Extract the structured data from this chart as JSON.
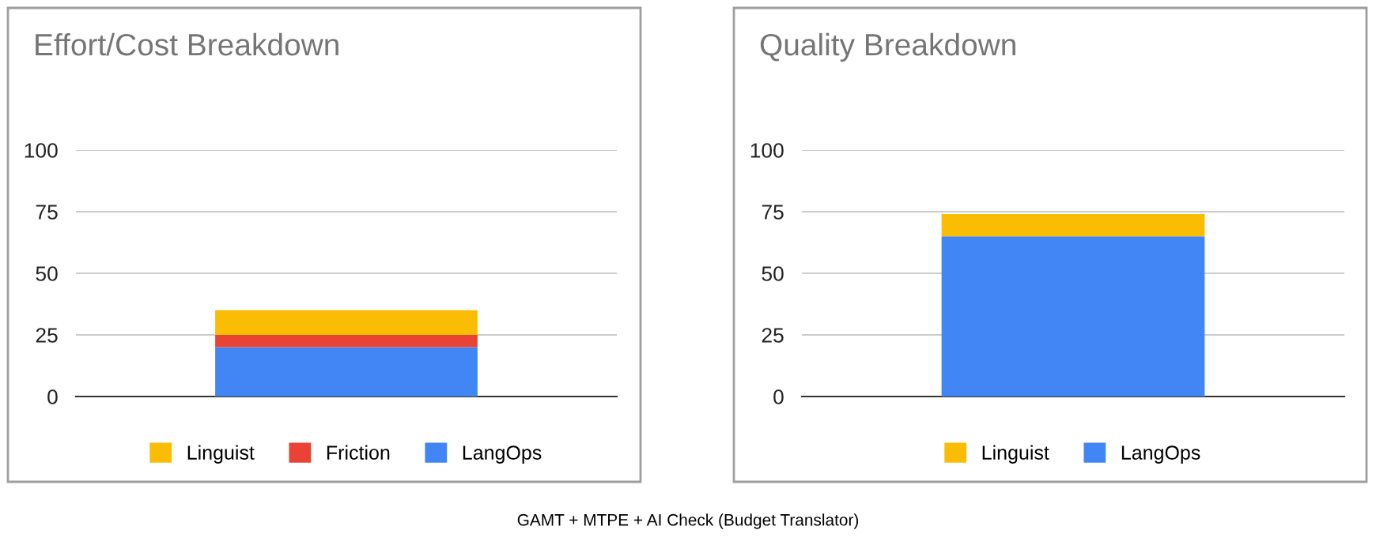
{
  "chart_data": [
    {
      "type": "bar",
      "title": "Effort/Cost Breakdown",
      "stacked": true,
      "categories": [
        null
      ],
      "ylim": [
        0,
        100
      ],
      "yticks": [
        0,
        25,
        50,
        75,
        100
      ],
      "grid": "y",
      "legend": "bottom",
      "series": [
        {
          "name": "LangOps",
          "color": "#4285f4",
          "values": [
            20
          ]
        },
        {
          "name": "Friction",
          "color": "#ea4335",
          "values": [
            5
          ]
        },
        {
          "name": "Linguist",
          "color": "#fbbc04",
          "values": [
            10
          ]
        }
      ],
      "annotations": [
        "GAMT + MTPE + AI Check (Budget Translator)"
      ]
    },
    {
      "type": "bar",
      "title": "Quality Breakdown",
      "stacked": true,
      "categories": [
        null
      ],
      "ylim": [
        0,
        100
      ],
      "yticks": [
        0,
        25,
        50,
        75,
        100
      ],
      "grid": "y",
      "legend": "bottom",
      "series": [
        {
          "name": "LangOps",
          "color": "#4285f4",
          "values": [
            65
          ]
        },
        {
          "name": "Linguist",
          "color": "#fbbc04",
          "values": [
            9
          ]
        }
      ]
    }
  ]
}
